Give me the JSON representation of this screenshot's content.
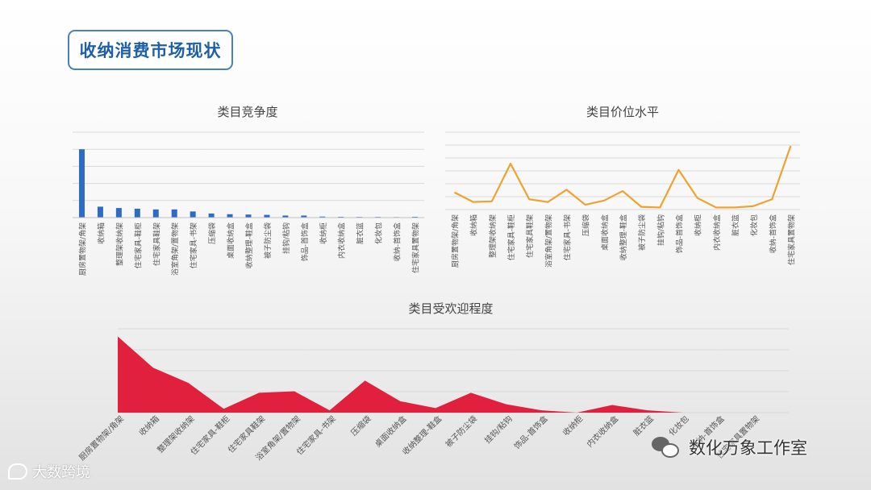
{
  "page": {
    "title": "收纳消费市场现状"
  },
  "footer": {
    "logo_text": "大数跨境"
  },
  "watermark": {
    "text": "数化万象工作室"
  },
  "colors": {
    "bar": "#2e6bc4",
    "line": "#f0a22e",
    "area": "#e0203c",
    "grid": "#d9d9d9",
    "tick": "#555555"
  },
  "chart_data": [
    {
      "type": "bar",
      "title": "类目竞争度",
      "categories": [
        "厨房置物架/角架",
        "收纳箱",
        "整理架收纳架",
        "住宅家具-鞋柜",
        "住宅家具鞋架",
        "浴室角架/置物架",
        "住宅家具-书架",
        "压缩袋",
        "桌面收纳盒",
        "收纳整理-鞋盒",
        "被子防尘袋",
        "挂钩/粘钩",
        "饰品-首饰盒",
        "收纳柜",
        "内衣收纳盒",
        "脏衣篮",
        "化妆包",
        "收纳-首饰盒",
        "住宅家具置物架"
      ],
      "values": [
        100,
        16,
        14,
        13,
        12,
        12,
        9,
        6,
        5,
        4.5,
        4,
        3,
        3,
        1.5,
        1.2,
        1,
        1,
        0.8,
        1.2
      ],
      "ylim": [
        0,
        125
      ],
      "grid": true
    },
    {
      "type": "line",
      "title": "类目价位水平",
      "categories": [
        "厨房置物架/角架",
        "收纳箱",
        "整理架收纳架",
        "住宅家具-鞋柜",
        "住宅家具鞋架",
        "浴室角架/置物架",
        "住宅家具-书架",
        "压缩袋",
        "桌面收纳盒",
        "收纳整理-鞋盒",
        "被子防尘袋",
        "挂钩/粘钩",
        "饰品-首饰盒",
        "收纳柜",
        "内衣收纳盒",
        "脏衣篮",
        "化妆包",
        "收纳-首饰盒",
        "住宅家具置物架"
      ],
      "values": [
        22,
        8,
        9,
        64,
        12,
        8,
        26,
        4,
        10,
        24,
        1,
        0,
        55,
        14,
        0,
        0,
        2,
        12,
        90
      ],
      "ylim": [
        -3,
        110
      ],
      "grid": true
    },
    {
      "type": "area",
      "title": "类目受欢迎程度",
      "categories": [
        "厨房置物架/角架",
        "收纳箱",
        "整理架收纳架",
        "住宅家具-鞋柜",
        "住宅家具鞋架",
        "浴室角架/置物架",
        "住宅家具-书架",
        "压缩袋",
        "桌面收纳盒",
        "收纳整理-鞋盒",
        "被子防尘袋",
        "挂钩/粘钩",
        "饰品-首饰盒",
        "收纳柜",
        "内衣收纳盒",
        "脏衣篮",
        "化妆包",
        "收纳-首饰盒",
        "住宅家具置物架"
      ],
      "values": [
        100,
        59,
        39,
        5,
        26,
        28,
        3,
        42,
        15,
        6,
        26,
        11,
        3,
        0,
        10,
        3,
        0,
        0,
        0
      ],
      "ylim": [
        0,
        110
      ],
      "grid": true
    }
  ]
}
